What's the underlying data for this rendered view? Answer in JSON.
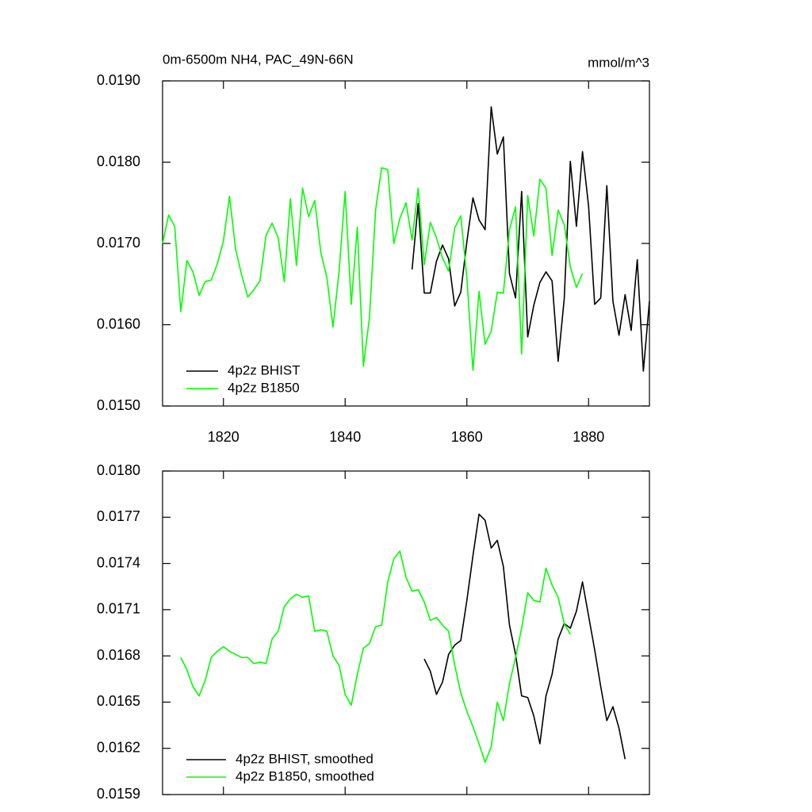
{
  "chart_data": [
    {
      "type": "line",
      "title": "0m-6500m NH4, PAC_49N-66N",
      "units": "mmol/m^3",
      "x": [
        1810,
        1811,
        1812,
        1813,
        1814,
        1815,
        1816,
        1817,
        1818,
        1819,
        1820,
        1821,
        1822,
        1823,
        1824,
        1825,
        1826,
        1827,
        1828,
        1829,
        1830,
        1831,
        1832,
        1833,
        1834,
        1835,
        1836,
        1837,
        1838,
        1839,
        1840,
        1841,
        1842,
        1843,
        1844,
        1845,
        1846,
        1847,
        1848,
        1849,
        1850,
        1851,
        1852,
        1853,
        1854,
        1855,
        1856,
        1857,
        1858,
        1859,
        1860,
        1861,
        1862,
        1863,
        1864,
        1865,
        1866,
        1867,
        1868,
        1869,
        1870,
        1871,
        1872,
        1873,
        1874,
        1875,
        1876,
        1877,
        1878,
        1879,
        1880,
        1881,
        1882,
        1883,
        1884,
        1885,
        1886,
        1887,
        1888,
        1889,
        1890
      ],
      "series": [
        {
          "name": "4p2z BHIST",
          "color": "#000000",
          "values": [
            null,
            null,
            null,
            null,
            null,
            null,
            null,
            null,
            null,
            null,
            null,
            null,
            null,
            null,
            null,
            null,
            null,
            null,
            null,
            null,
            null,
            null,
            null,
            null,
            null,
            null,
            null,
            null,
            null,
            null,
            null,
            null,
            null,
            null,
            null,
            null,
            null,
            null,
            null,
            null,
            null,
            0.01668,
            0.01749,
            0.01639,
            0.01639,
            0.01678,
            0.01698,
            0.01681,
            0.01623,
            0.0164,
            0.01702,
            0.01756,
            0.01729,
            0.01717,
            0.01868,
            0.0181,
            0.01831,
            0.01663,
            0.01633,
            0.01764,
            0.01585,
            0.01624,
            0.01652,
            0.01665,
            0.01654,
            0.01555,
            0.01632,
            0.01801,
            0.01721,
            0.01813,
            0.01746,
            0.01625,
            0.01633,
            0.01771,
            0.01629,
            0.01587,
            0.01637,
            0.01593,
            0.0168,
            0.01543,
            0.01629
          ]
        },
        {
          "name": "4p2z B1850",
          "color": "#00ff00",
          "values": [
            0.017,
            0.01735,
            0.01721,
            0.01616,
            0.01679,
            0.01665,
            0.01636,
            0.01653,
            0.01655,
            0.01675,
            0.01703,
            0.01758,
            0.01693,
            0.01661,
            0.01634,
            0.01643,
            0.01654,
            0.0171,
            0.01725,
            0.01707,
            0.01653,
            0.01755,
            0.01673,
            0.01768,
            0.01733,
            0.01753,
            0.01689,
            0.01658,
            0.01597,
            0.01665,
            0.01764,
            0.01625,
            0.0172,
            0.01549,
            0.01609,
            0.01741,
            0.01793,
            0.01791,
            0.017,
            0.01731,
            0.0175,
            0.01704,
            0.01768,
            0.01674,
            0.01726,
            0.01707,
            0.01682,
            0.01666,
            0.01719,
            0.01734,
            0.01658,
            0.01544,
            0.01641,
            0.01576,
            0.01592,
            0.0164,
            0.01639,
            0.01717,
            0.01745,
            0.01564,
            0.01759,
            0.01709,
            0.01779,
            0.01768,
            0.01685,
            0.01741,
            0.01723,
            0.01671,
            0.01646,
            0.01663,
            null,
            null,
            null,
            null,
            null,
            null,
            null,
            null,
            null,
            null,
            null
          ]
        }
      ],
      "xlim": [
        1810,
        1890
      ],
      "xticks": [
        1820,
        1840,
        1860,
        1880
      ],
      "ylim": [
        0.015,
        0.019
      ],
      "yticks": [
        {
          "value": 0.015,
          "label": "0.0150"
        },
        {
          "value": 0.016,
          "label": "0.0160"
        },
        {
          "value": 0.017,
          "label": "0.0170"
        },
        {
          "value": 0.018,
          "label": "0.0180"
        },
        {
          "value": 0.019,
          "label": "0.0190"
        }
      ],
      "legend": "lower left"
    },
    {
      "type": "line",
      "x": [
        1813,
        1814,
        1815,
        1816,
        1817,
        1818,
        1819,
        1820,
        1821,
        1822,
        1823,
        1824,
        1825,
        1826,
        1827,
        1828,
        1829,
        1830,
        1831,
        1832,
        1833,
        1834,
        1835,
        1836,
        1837,
        1838,
        1839,
        1840,
        1841,
        1842,
        1843,
        1844,
        1845,
        1846,
        1847,
        1848,
        1849,
        1850,
        1851,
        1852,
        1853,
        1854,
        1855,
        1856,
        1857,
        1858,
        1859,
        1860,
        1861,
        1862,
        1863,
        1864,
        1865,
        1866,
        1867,
        1868,
        1869,
        1870,
        1871,
        1872,
        1873,
        1874,
        1875,
        1876,
        1877,
        1878,
        1879,
        1880,
        1881,
        1882,
        1883,
        1884,
        1885,
        1886
      ],
      "series": [
        {
          "name": "4p2z BHIST, smoothed",
          "color": "#000000",
          "values": [
            null,
            null,
            null,
            null,
            null,
            null,
            null,
            null,
            null,
            null,
            null,
            null,
            null,
            null,
            null,
            null,
            null,
            null,
            null,
            null,
            null,
            null,
            null,
            null,
            null,
            null,
            null,
            null,
            null,
            null,
            null,
            null,
            null,
            null,
            null,
            null,
            null,
            null,
            null,
            null,
            0.01678,
            0.0167,
            0.01655,
            0.01663,
            0.01681,
            0.01687,
            0.0169,
            0.01716,
            0.01745,
            0.01772,
            0.01768,
            0.0175,
            0.01755,
            0.01738,
            0.017,
            0.01681,
            0.01654,
            0.01653,
            0.01641,
            0.01623,
            0.01654,
            0.01668,
            0.01691,
            0.01701,
            0.01698,
            0.01709,
            0.01728,
            0.01706,
            0.01684,
            0.0166,
            0.01638,
            0.01647,
            0.01633,
            0.01613
          ]
        },
        {
          "name": "4p2z B1850, smoothed",
          "color": "#00ff00",
          "values": [
            0.01679,
            0.01671,
            0.0166,
            0.01654,
            0.01664,
            0.01679,
            0.01683,
            0.01686,
            0.01683,
            0.01681,
            0.01679,
            0.01679,
            0.01675,
            0.01676,
            0.01675,
            0.01691,
            0.01696,
            0.01712,
            0.01717,
            0.0172,
            0.01718,
            0.01719,
            0.01696,
            0.01697,
            0.01696,
            0.0168,
            0.01674,
            0.01655,
            0.01648,
            0.01668,
            0.01685,
            0.01688,
            0.01699,
            0.017,
            0.01728,
            0.01743,
            0.01748,
            0.01731,
            0.01722,
            0.01723,
            0.01715,
            0.01703,
            0.01705,
            0.017,
            0.01696,
            0.01674,
            0.01656,
            0.01644,
            0.01634,
            0.01623,
            0.01611,
            0.01621,
            0.0165,
            0.01638,
            0.01662,
            0.01679,
            0.01698,
            0.01721,
            0.01716,
            0.01715,
            0.01737,
            0.01726,
            0.01718,
            0.01701,
            0.01694,
            null,
            null,
            null,
            null,
            null,
            null,
            null,
            null,
            null
          ]
        }
      ],
      "xlim": [
        1810,
        1890
      ],
      "ylim": [
        0.0159,
        0.018
      ],
      "yticks": [
        0.0159,
        0.0162,
        0.0165,
        0.0168,
        0.0171,
        0.0174,
        0.0177,
        {
          "value": 0.018,
          "label": "0.0180"
        }
      ],
      "legend": "lower left"
    }
  ]
}
